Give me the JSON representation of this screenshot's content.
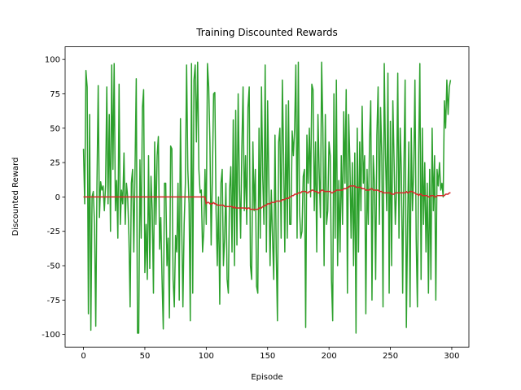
{
  "chart_data": {
    "type": "line",
    "title": "Training Discounted Rewards",
    "xlabel": "Episode",
    "ylabel": "Discounted Reward",
    "x": [
      0,
      1,
      2,
      3,
      4,
      5,
      6,
      7,
      8,
      9,
      10,
      11,
      12,
      13,
      14,
      15,
      16,
      17,
      18,
      19,
      20,
      21,
      22,
      23,
      24,
      25,
      26,
      27,
      28,
      29,
      30,
      31,
      32,
      33,
      34,
      35,
      36,
      37,
      38,
      39,
      40,
      41,
      42,
      43,
      44,
      45,
      46,
      47,
      48,
      49,
      50,
      51,
      52,
      53,
      54,
      55,
      56,
      57,
      58,
      59,
      60,
      61,
      62,
      63,
      64,
      65,
      66,
      67,
      68,
      69,
      70,
      71,
      72,
      73,
      74,
      75,
      76,
      77,
      78,
      79,
      80,
      81,
      82,
      83,
      84,
      85,
      86,
      87,
      88,
      89,
      90,
      91,
      92,
      93,
      94,
      95,
      96,
      97,
      98,
      99,
      100,
      101,
      102,
      103,
      104,
      105,
      106,
      107,
      108,
      109,
      110,
      111,
      112,
      113,
      114,
      115,
      116,
      117,
      118,
      119,
      120,
      121,
      122,
      123,
      124,
      125,
      126,
      127,
      128,
      129,
      130,
      131,
      132,
      133,
      134,
      135,
      136,
      137,
      138,
      139,
      140,
      141,
      142,
      143,
      144,
      145,
      146,
      147,
      148,
      149,
      150,
      151,
      152,
      153,
      154,
      155,
      156,
      157,
      158,
      159,
      160,
      161,
      162,
      163,
      164,
      165,
      166,
      167,
      168,
      169,
      170,
      171,
      172,
      173,
      174,
      175,
      176,
      177,
      178,
      179,
      180,
      181,
      182,
      183,
      184,
      185,
      186,
      187,
      188,
      189,
      190,
      191,
      192,
      193,
      194,
      195,
      196,
      197,
      198,
      199,
      200,
      201,
      202,
      203,
      204,
      205,
      206,
      207,
      208,
      209,
      210,
      211,
      212,
      213,
      214,
      215,
      216,
      217,
      218,
      219,
      220,
      221,
      222,
      223,
      224,
      225,
      226,
      227,
      228,
      229,
      230,
      231,
      232,
      233,
      234,
      235,
      236,
      237,
      238,
      239,
      240,
      241,
      242,
      243,
      244,
      245,
      246,
      247,
      248,
      249,
      250,
      251,
      252,
      253,
      254,
      255,
      256,
      257,
      258,
      259,
      260,
      261,
      262,
      263,
      264,
      265,
      266,
      267,
      268,
      269,
      270,
      271,
      272,
      273,
      274,
      275,
      276,
      277,
      278,
      279,
      280,
      281,
      282,
      283,
      284,
      285,
      286,
      287,
      288,
      289,
      290,
      291,
      292,
      293,
      294,
      295,
      296,
      297,
      298,
      299
    ],
    "series": [
      {
        "color": "#2ca02c",
        "values": [
          35,
          -5,
          92,
          80,
          -85,
          60,
          -97,
          0,
          4,
          -20,
          -94,
          10,
          81,
          -15,
          11,
          5,
          8,
          -10,
          8,
          80,
          -5,
          60,
          -25,
          96,
          20,
          97,
          -10,
          12,
          -30,
          82,
          -20,
          5,
          -5,
          32,
          -20,
          10,
          0,
          -28,
          -80,
          10,
          20,
          -40,
          20,
          86,
          -99,
          -99,
          27,
          -30,
          65,
          78,
          -55,
          -20,
          -60,
          30,
          -52,
          15,
          -10,
          -70,
          40,
          -20,
          30,
          44,
          -38,
          -15,
          -60,
          -96,
          10,
          10,
          -50,
          -30,
          -88,
          37,
          35,
          -60,
          -80,
          -28,
          -40,
          10,
          -75,
          57,
          -20,
          -80,
          -20,
          10,
          96,
          20,
          -5,
          -90,
          97,
          -70,
          85,
          96,
          40,
          98,
          20,
          3,
          5,
          -40,
          -25,
          20,
          -20,
          97,
          80,
          40,
          -35,
          15,
          75,
          76,
          -10,
          -50,
          0,
          -78,
          10,
          20,
          -50,
          -30,
          10,
          -60,
          -70,
          5,
          22,
          -40,
          56,
          -50,
          63,
          -35,
          75,
          10,
          -30,
          35,
          80,
          -10,
          30,
          -20,
          65,
          80,
          -50,
          -60,
          40,
          -10,
          20,
          -65,
          -70,
          50,
          -30,
          80,
          15,
          -20,
          96,
          -40,
          70,
          10,
          -50,
          5,
          -30,
          -60,
          45,
          -40,
          -90,
          40,
          50,
          -30,
          85,
          30,
          -40,
          67,
          -30,
          70,
          -20,
          -20,
          48,
          30,
          50,
          96,
          -30,
          98,
          -10,
          -30,
          -25,
          15,
          20,
          -95,
          45,
          10,
          50,
          0,
          82,
          78,
          -10,
          40,
          -40,
          60,
          18,
          -15,
          98,
          50,
          -50,
          60,
          -20,
          -10,
          40,
          30,
          -60,
          -90,
          75,
          -30,
          85,
          -50,
          12,
          -40,
          30,
          -20,
          62,
          10,
          78,
          -70,
          60,
          26,
          -30,
          25,
          -50,
          32,
          -99,
          50,
          -40,
          40,
          -10,
          66,
          10,
          30,
          -85,
          20,
          -20,
          40,
          70,
          -75,
          30,
          10,
          -60,
          45,
          80,
          -20,
          65,
          30,
          -80,
          97,
          30,
          -10,
          90,
          -70,
          55,
          -50,
          70,
          27,
          -20,
          5,
          90,
          -30,
          50,
          17,
          -70,
          20,
          85,
          -95,
          -20,
          40,
          -80,
          50,
          -10,
          20,
          85,
          -30,
          -80,
          30,
          97,
          -60,
          50,
          -20,
          25,
          -40,
          10,
          -70,
          20,
          -60,
          50,
          -10,
          30,
          -75,
          20,
          8,
          25,
          5,
          10,
          0,
          70,
          50,
          85,
          60,
          80,
          85
        ]
      },
      {
        "color": "#d62728",
        "values": [
          0,
          0,
          0,
          0,
          0,
          0,
          0,
          0,
          0,
          0,
          0,
          0,
          0,
          0,
          0,
          0,
          0,
          0,
          0,
          0,
          0,
          0,
          0,
          0,
          0,
          0,
          0,
          0,
          0,
          0,
          0,
          0,
          0,
          0,
          0,
          0,
          0,
          0,
          0,
          0,
          0,
          0,
          0,
          0,
          0,
          0,
          0,
          0,
          0,
          0,
          0,
          0,
          0,
          0,
          0,
          0,
          0,
          0,
          0,
          0,
          0,
          0,
          0,
          0,
          0,
          0,
          0,
          0,
          0,
          0,
          0,
          0,
          0,
          0,
          0,
          0,
          0,
          0,
          0,
          0,
          0,
          0,
          0,
          0,
          0,
          0,
          0,
          0,
          0,
          0,
          0,
          0,
          0,
          0,
          0,
          0,
          0,
          0,
          0,
          0,
          -5,
          -4,
          -4,
          -5,
          -5,
          -5,
          -4,
          -5,
          -5,
          -6,
          -6,
          -6,
          -6,
          -6,
          -6,
          -7,
          -7,
          -7,
          -7,
          -7,
          -7,
          -7,
          -8,
          -7,
          -8,
          -8,
          -8,
          -8,
          -8,
          -8,
          -8,
          -8,
          -8,
          -9,
          -8,
          -8,
          -9,
          -9,
          -9,
          -9,
          -9,
          -9,
          -9,
          -8,
          -8,
          -8,
          -7,
          -7,
          -6,
          -6,
          -5,
          -5,
          -5,
          -4,
          -4,
          -4,
          -4,
          -3,
          -3,
          -3,
          -3,
          -3,
          -2,
          -2,
          -2,
          -1,
          -1,
          -1,
          0,
          0,
          1,
          1,
          2,
          2,
          2,
          3,
          3,
          3,
          4,
          4,
          4,
          4,
          3,
          3,
          4,
          4,
          5,
          5,
          4,
          4,
          4,
          3,
          3,
          4,
          5,
          5,
          4,
          4,
          4,
          4,
          4,
          4,
          3,
          3,
          4,
          4,
          5,
          5,
          5,
          5,
          5,
          5,
          6,
          6,
          6,
          7,
          7,
          8,
          8,
          8,
          8,
          8,
          7,
          7,
          7,
          7,
          7,
          6,
          6,
          6,
          5,
          5,
          5,
          5,
          6,
          6,
          5,
          5,
          5,
          5,
          5,
          4,
          4,
          4,
          3,
          3,
          3,
          3,
          3,
          3,
          3,
          2,
          2,
          2,
          3,
          3,
          3,
          3,
          3,
          3,
          3,
          3,
          3,
          4,
          3,
          3,
          4,
          4,
          4,
          3,
          3,
          2,
          2,
          1,
          2,
          2,
          1,
          1,
          1,
          1,
          1,
          0,
          0,
          1,
          1,
          1,
          0,
          0,
          1,
          1,
          1,
          1,
          1,
          1,
          1,
          2,
          2,
          2,
          3,
          3
        ]
      }
    ],
    "xlim": [
      -14.95,
      313.95
    ],
    "ylim": [
      -109.2,
      109.2
    ],
    "xticks": [
      0,
      50,
      100,
      150,
      200,
      250,
      300
    ],
    "yticks": [
      -100,
      -75,
      -50,
      -25,
      0,
      25,
      50,
      75,
      100
    ]
  }
}
